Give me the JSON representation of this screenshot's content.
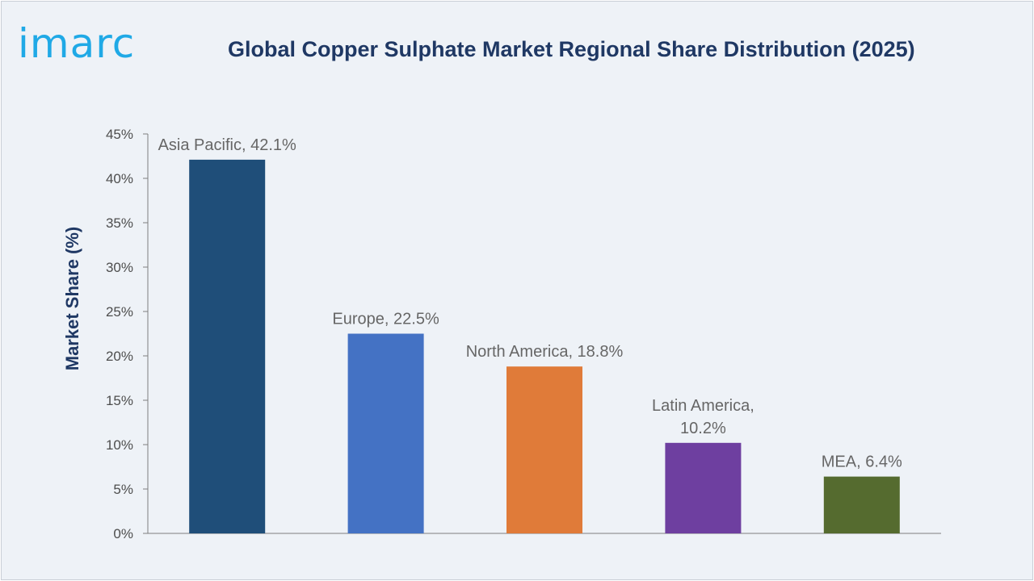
{
  "header": {
    "logo_text": "imarc",
    "title": "Global Copper Sulphate Market Regional Share Distribution (2025)"
  },
  "chart_data": {
    "type": "bar",
    "title": "Global Copper Sulphate Market Regional Share Distribution (2025)",
    "xlabel": "",
    "ylabel": "Market Share (%)",
    "ylim": [
      0,
      45
    ],
    "yticks": [
      "0%",
      "5%",
      "10%",
      "15%",
      "20%",
      "25%",
      "30%",
      "35%",
      "40%",
      "45%"
    ],
    "categories": [
      "Asia Pacific",
      "Europe",
      "North America",
      "Latin America",
      "MEA"
    ],
    "values": [
      42.1,
      22.5,
      18.8,
      10.2,
      6.4
    ],
    "data_labels": [
      [
        "Asia Pacific, 42.1%"
      ],
      [
        "Europe, 22.5%"
      ],
      [
        "North America, 18.8%"
      ],
      [
        "Latin America,",
        "10.2%"
      ],
      [
        "MEA, 6.4%"
      ]
    ],
    "colors": [
      "#1f4e79",
      "#4472c4",
      "#e07b39",
      "#6e3fa0",
      "#556b2f"
    ],
    "grid": false,
    "legend": "none"
  }
}
